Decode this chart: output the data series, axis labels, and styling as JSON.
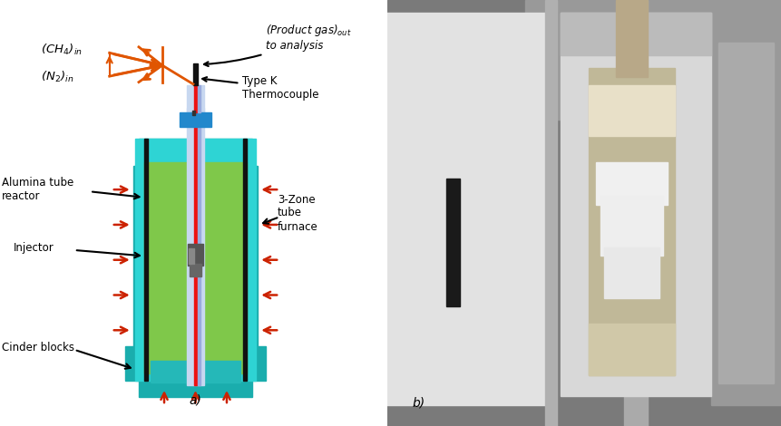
{
  "fig_width": 8.62,
  "fig_height": 4.7,
  "dpi": 100,
  "bg_color": "#ffffff",
  "teal1": "#2ec4c4",
  "teal2": "#1aadad",
  "teal3": "#17c4c4",
  "green": "#7fc84a",
  "blue_cap": "#2288cc",
  "orange": "#e05500",
  "red_arrow": "#cc2200",
  "labels": {
    "ch4": "(CH$_4$)$_{in}$",
    "n2": "(N$_2$)$_{in}$",
    "product": "(Product gas)$_{out}$",
    "to_analysis": "to analysis",
    "type_k": "Type K",
    "thermocouple": "Thermocouple",
    "alumina1": "Alumina tube",
    "alumina2": "reactor",
    "injector": "Injector",
    "cinder": "Cinder blocks",
    "zone1": "3-Zone",
    "zone2": "tube",
    "zone3": "furnace",
    "label_a": "a)",
    "label_b": "b)"
  }
}
